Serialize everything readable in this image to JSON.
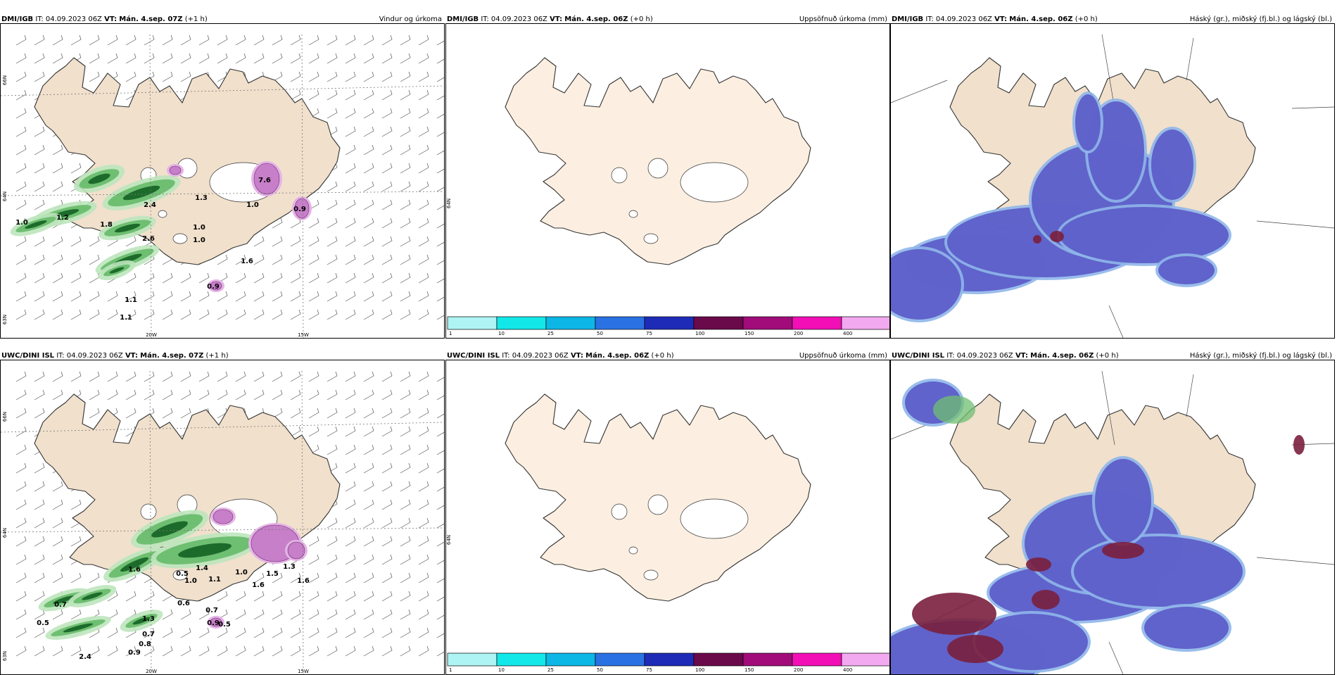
{
  "labels": {
    "it": "IT:",
    "vt": "VT:"
  },
  "colors": {
    "land": "#f0e0cc",
    "land_light": "#fcefe1",
    "coast": "#333333",
    "green_light": "#bde6bc",
    "green_mid": "#6fbf72",
    "green_dark": "#1d6b2b",
    "magenta": "#c67fc8",
    "magenta_light": "#e5b3e6",
    "cloud_blue": "#5b5bc8",
    "cloud_light": "#8fb6ea",
    "cloud_red": "#7a1f3d"
  },
  "panels": [
    {
      "id": "wind",
      "model": "DMI/IGB",
      "it": "04.09.2023 06Z",
      "vt": "Mán. 4.sep. 07Z",
      "lead": "(+1 h)",
      "title": "Vindur og úrkoma",
      "lon_labels": [
        "20W",
        "15W"
      ],
      "lat_labels": [
        "66N",
        "64N",
        "63N"
      ],
      "values": [
        "1.0",
        "1.2",
        "1.8",
        "2.4",
        "1.3",
        "1.6",
        "2.6",
        "1.0",
        "1.0",
        "0.9",
        "1.1",
        "1.1",
        "7.6",
        "0.9",
        "1.0"
      ]
    },
    {
      "id": "accum",
      "model": "DMI/IGB",
      "it": "04.09.2023 06Z",
      "vt": "Mán. 4.sep. 06Z",
      "lead": "(+0 h)",
      "title": "Uppsöfnuð úrkoma (mm)",
      "lat_labels": [
        "64N"
      ],
      "colorbar_colors": [
        "#aef4f4",
        "#12e8e8",
        "#0cb7e6",
        "#2a72e3",
        "#1e2bb7",
        "#6a0a4a",
        "#a10c7a",
        "#f20fb6",
        "#f2a9ef"
      ],
      "colorbar_ticks": [
        "1",
        "10",
        "25",
        "50",
        "75",
        "100",
        "150",
        "200",
        "400"
      ]
    },
    {
      "id": "cloud",
      "model": "DMI/IGB",
      "it": "04.09.2023 06Z",
      "vt": "Mán. 4.sep. 06Z",
      "lead": "(+0 h)",
      "title": "Háský (gr.), miðský (fj.bl.) og lágský (bl.)"
    },
    {
      "id": "wind",
      "model": "UWC/DINI ISL",
      "it": "04.09.2023 06Z",
      "vt": "Mán. 4.sep. 07Z",
      "lead": "(+1 h)",
      "title": "",
      "lon_labels": [
        "20W",
        "15W"
      ],
      "lat_labels": [
        "66N",
        "64N",
        "63N"
      ],
      "values": [
        "1.6",
        "0.5",
        "1.0",
        "1.4",
        "1.1",
        "1.0",
        "1.6",
        "1.5",
        "1.3",
        "1.6",
        "0.9",
        "0.7",
        "0.6",
        "0.5",
        "0.7",
        "0.5",
        "2.4",
        "1.3",
        "0.7",
        "0.9",
        "0.8"
      ]
    },
    {
      "id": "accum",
      "model": "UWC/DINI ISL",
      "it": "04.09.2023 06Z",
      "vt": "Mán. 4.sep. 06Z",
      "lead": "(+0 h)",
      "title": "Uppsöfnuð úrkoma (mm)",
      "lat_labels": [
        "64N"
      ],
      "colorbar_colors": [
        "#aef4f4",
        "#12e8e8",
        "#0cb7e6",
        "#2a72e3",
        "#1e2bb7",
        "#6a0a4a",
        "#a10c7a",
        "#f20fb6",
        "#f2a9ef"
      ],
      "colorbar_ticks": [
        "1",
        "10",
        "25",
        "50",
        "75",
        "100",
        "150",
        "200",
        "400"
      ]
    },
    {
      "id": "cloud",
      "model": "UWC/DINI ISL",
      "it": "04.09.2023 06Z",
      "vt": "Mán. 4.sep. 06Z",
      "lead": "(+0 h)",
      "title": "Háský (gr.), miðský (fj.bl.) og lágský (bl.)"
    }
  ]
}
